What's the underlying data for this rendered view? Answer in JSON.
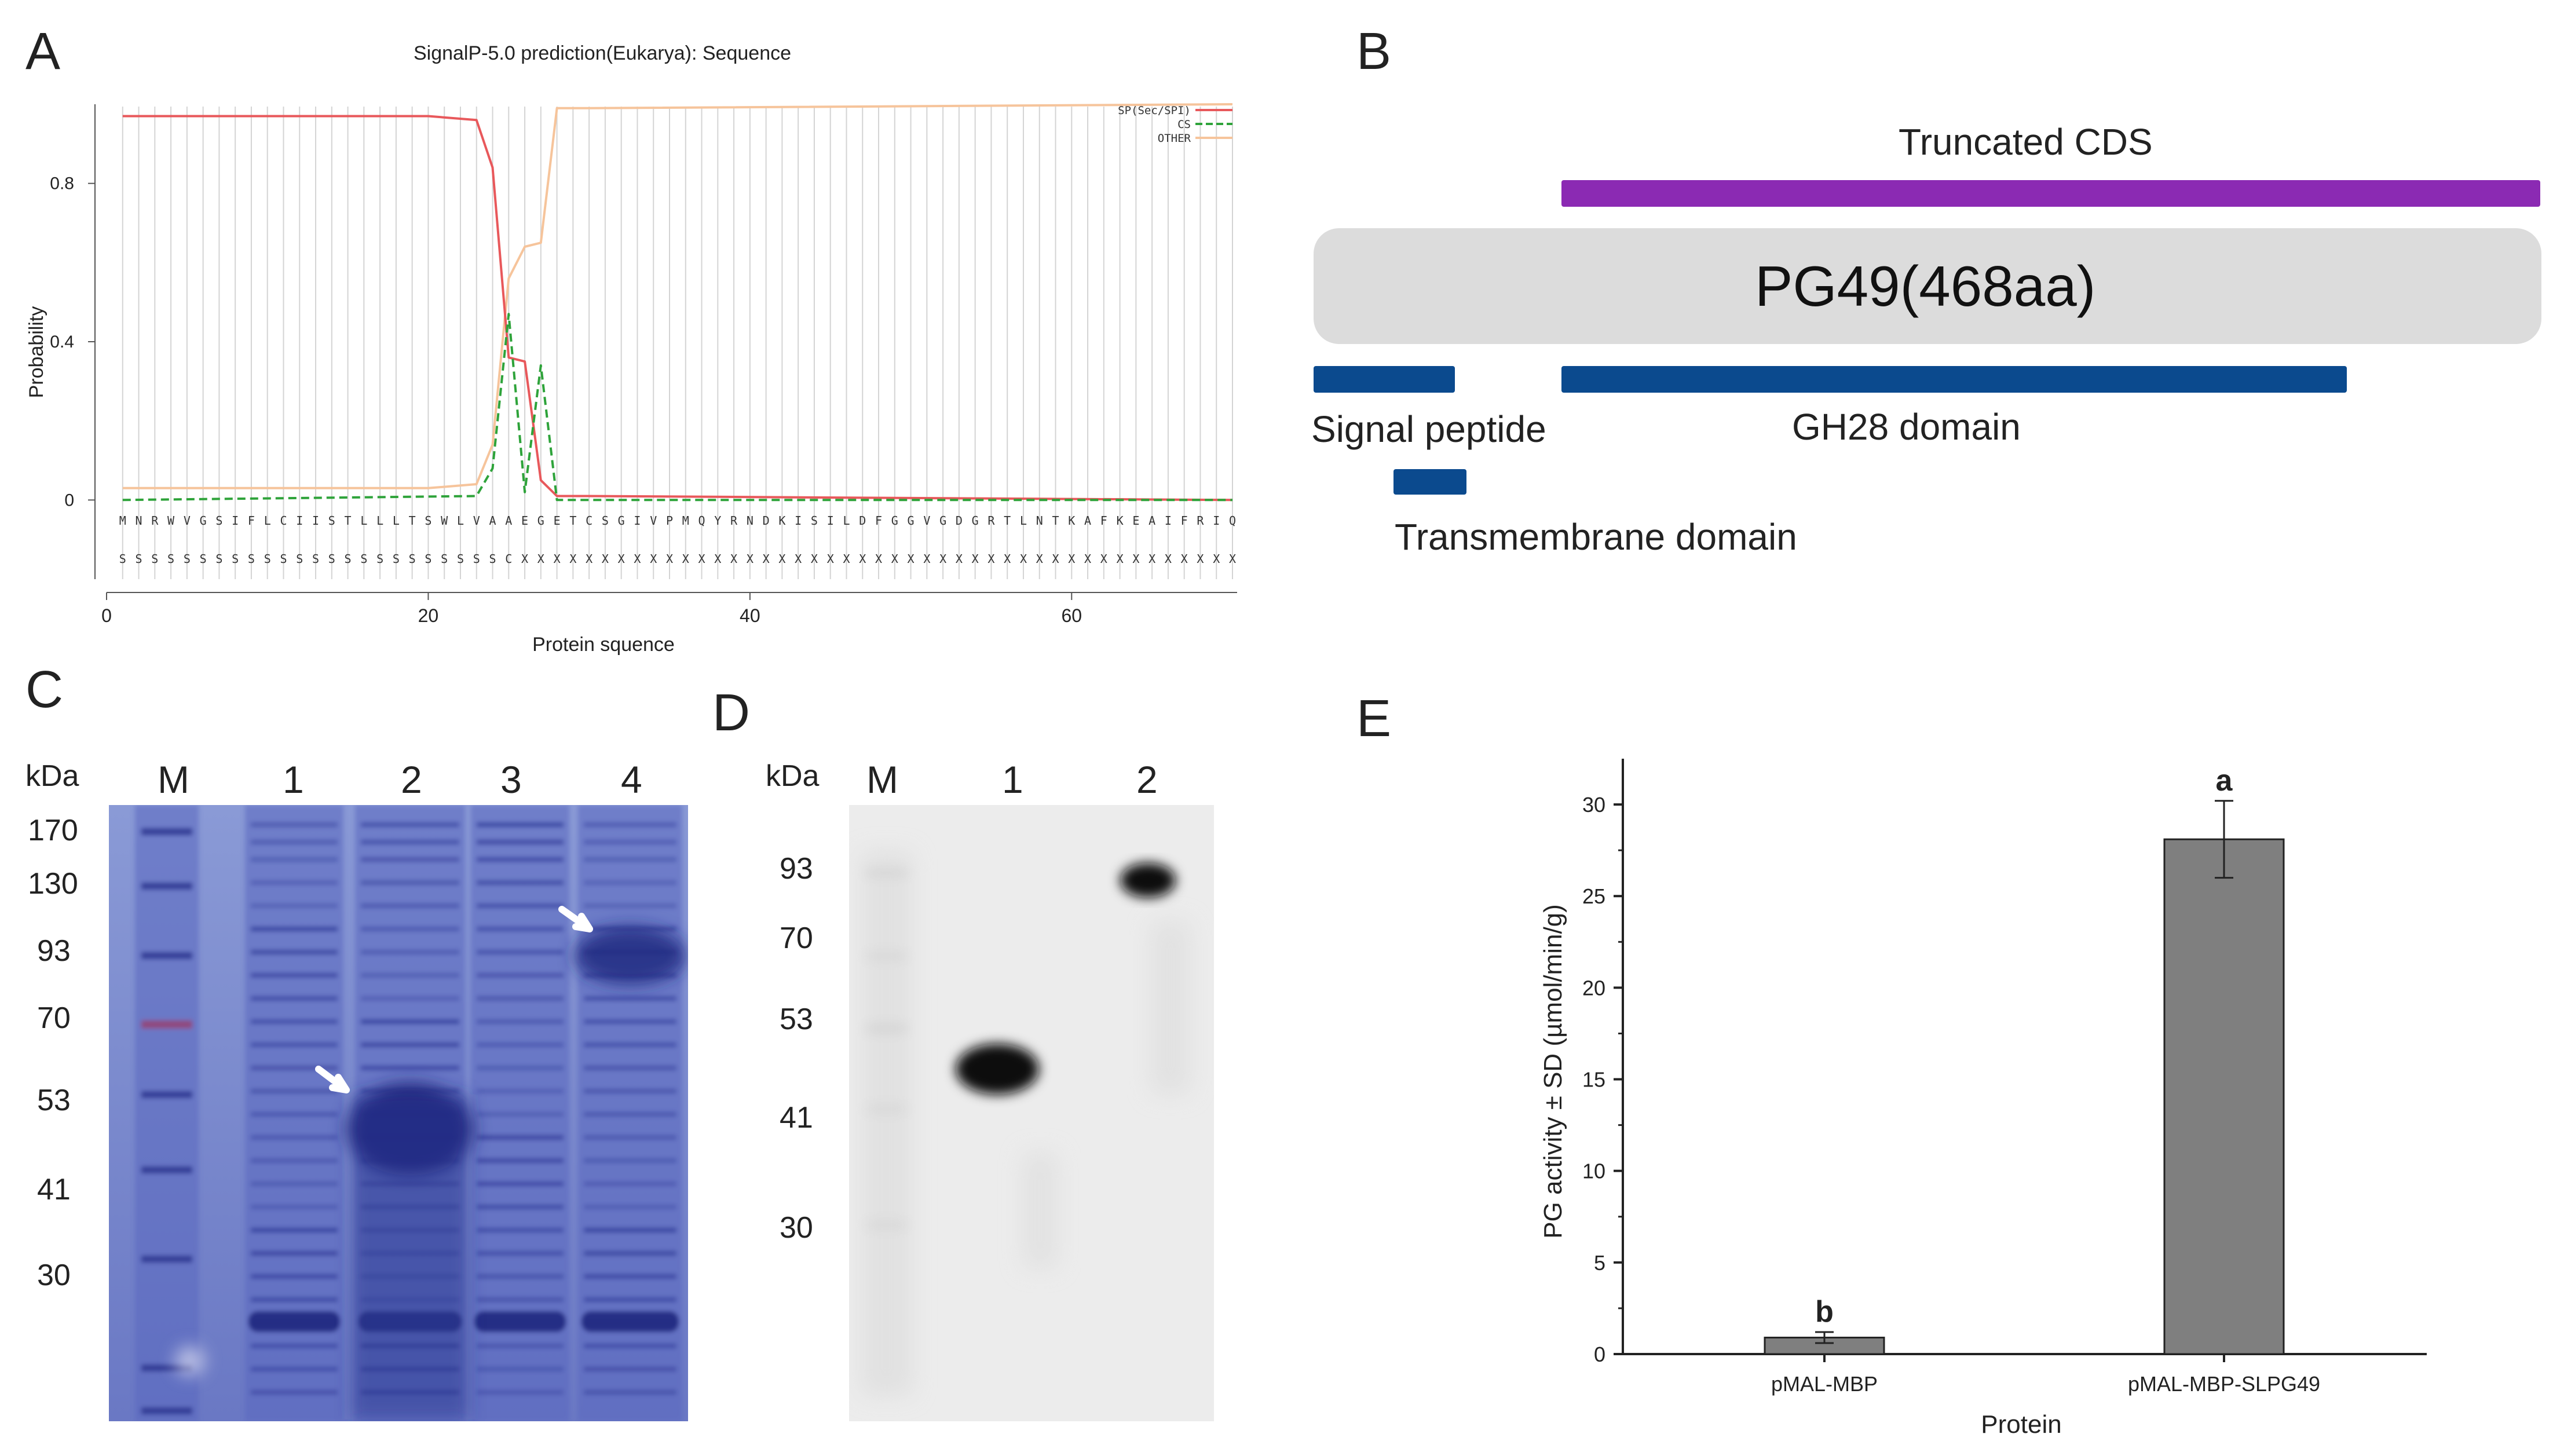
{
  "panels": {
    "A": "A",
    "B": "B",
    "C": "C",
    "D": "D",
    "E": "E"
  },
  "colors": {
    "sp": "#e8585b",
    "cs": "#2ea33a",
    "other": "#f6c49b",
    "truncated": "#8b2ab3",
    "domain": "#0b4a8e",
    "protein_box": "#dcdcdc",
    "gel_c": "#4a58b8",
    "bar": "#7f7f7f"
  },
  "panel_a": {
    "chart_data": {
      "type": "line",
      "title": "SignalP-5.0 prediction(Eukarya): Sequence",
      "xlabel": "Protein squence",
      "ylabel": "Probability",
      "xlim": [
        0,
        70
      ],
      "ylim": [
        -0.2,
        1.0
      ],
      "xticks": [
        0,
        20,
        40,
        60
      ],
      "yticks": [
        0,
        0.4,
        0.8
      ],
      "ytick_labels": [
        "0",
        "0.4",
        "0.8"
      ],
      "legend": [
        "SP(Sec/SPI)",
        "CS",
        "OTHER"
      ],
      "legend_position": "top-right",
      "sequence": "MNRWVGSIFLCIISTLLLTSWLVAAEGETCSGIVPMQYRNDKISILDFGGVGDGRTLNTKAFKEAIFRIQ",
      "annotation": "SSSSSSSSSSSSSSSSSSSSSSSSCXXXXXXXXXXXXXXXXXXXXXXXXXXXXXXXXXXXXXXXXXXXXX",
      "series": [
        {
          "name": "SP(Sec/SPI)",
          "x": [
            1,
            10,
            20,
            23,
            24,
            25,
            26,
            27,
            28,
            30,
            70
          ],
          "y": [
            0.97,
            0.97,
            0.97,
            0.96,
            0.84,
            0.36,
            0.35,
            0.05,
            0.01,
            0.01,
            0.0
          ]
        },
        {
          "name": "CS",
          "x": [
            1,
            23,
            24,
            25,
            26,
            27,
            28,
            30,
            70
          ],
          "y": [
            0.0,
            0.01,
            0.08,
            0.47,
            0.02,
            0.34,
            0.0,
            0.0,
            0.0
          ]
        },
        {
          "name": "OTHER",
          "x": [
            1,
            20,
            23,
            24,
            25,
            26,
            27,
            28,
            30,
            70
          ],
          "y": [
            0.03,
            0.03,
            0.04,
            0.14,
            0.56,
            0.64,
            0.65,
            0.99,
            0.99,
            1.0
          ]
        }
      ]
    }
  },
  "panel_b": {
    "truncated_label": "Truncated CDS",
    "protein_label": "PG49(468aa)",
    "signal_label": "Signal peptide",
    "gh28_label": "GH28 domain",
    "tm_label": "Transmembrane domain"
  },
  "panel_c": {
    "kda": "kDa",
    "lanes": [
      "M",
      "1",
      "2",
      "3",
      "4"
    ],
    "markers": [
      "170",
      "130",
      "93",
      "70",
      "53",
      "41",
      "30"
    ]
  },
  "panel_d": {
    "kda": "kDa",
    "lanes": [
      "M",
      "1",
      "2"
    ],
    "markers": [
      "93",
      "70",
      "53",
      "41",
      "30"
    ]
  },
  "panel_e": {
    "chart_data": {
      "type": "bar",
      "categories": [
        "pMAL-MBP",
        "pMAL-MBP-SLPG49"
      ],
      "values": [
        0.9,
        28.1
      ],
      "errors": [
        0.3,
        2.1
      ],
      "significance": [
        "b",
        "a"
      ],
      "xlabel": "Protein",
      "ylabel": "PG activity ± SD (µmol/min/g)",
      "ylim": [
        0,
        32.5
      ],
      "yticks": [
        0,
        5,
        10,
        15,
        20,
        25,
        30
      ]
    }
  }
}
